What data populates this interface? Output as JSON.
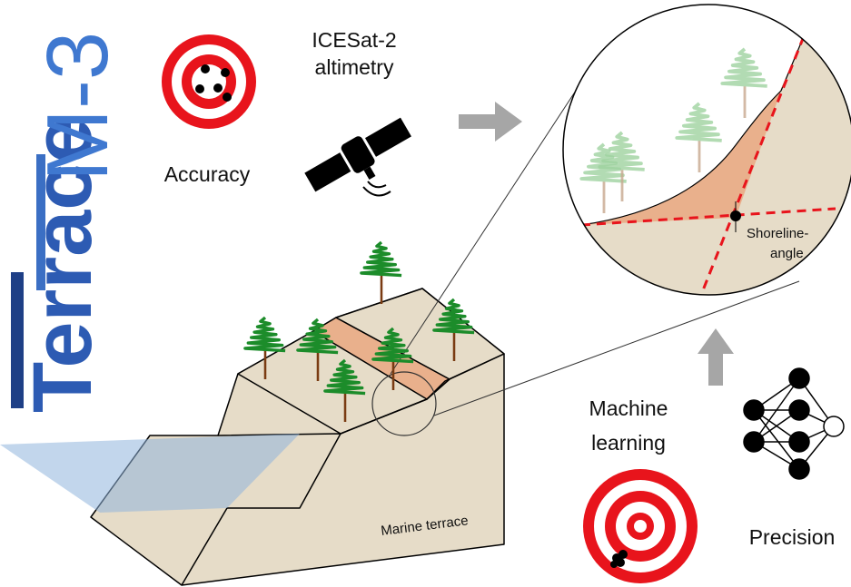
{
  "logo": {
    "name": "Terrace",
    "suffix": "M-3"
  },
  "accuracy": "Accuracy",
  "altimetry": [
    "ICESat-2",
    "altimetry"
  ],
  "shoreline_angle": [
    "Shoreline-",
    "angle"
  ],
  "machine_learning": [
    "Machine",
    "learning"
  ],
  "precision": "Precision",
  "terrace_label": "Marine terrace"
}
